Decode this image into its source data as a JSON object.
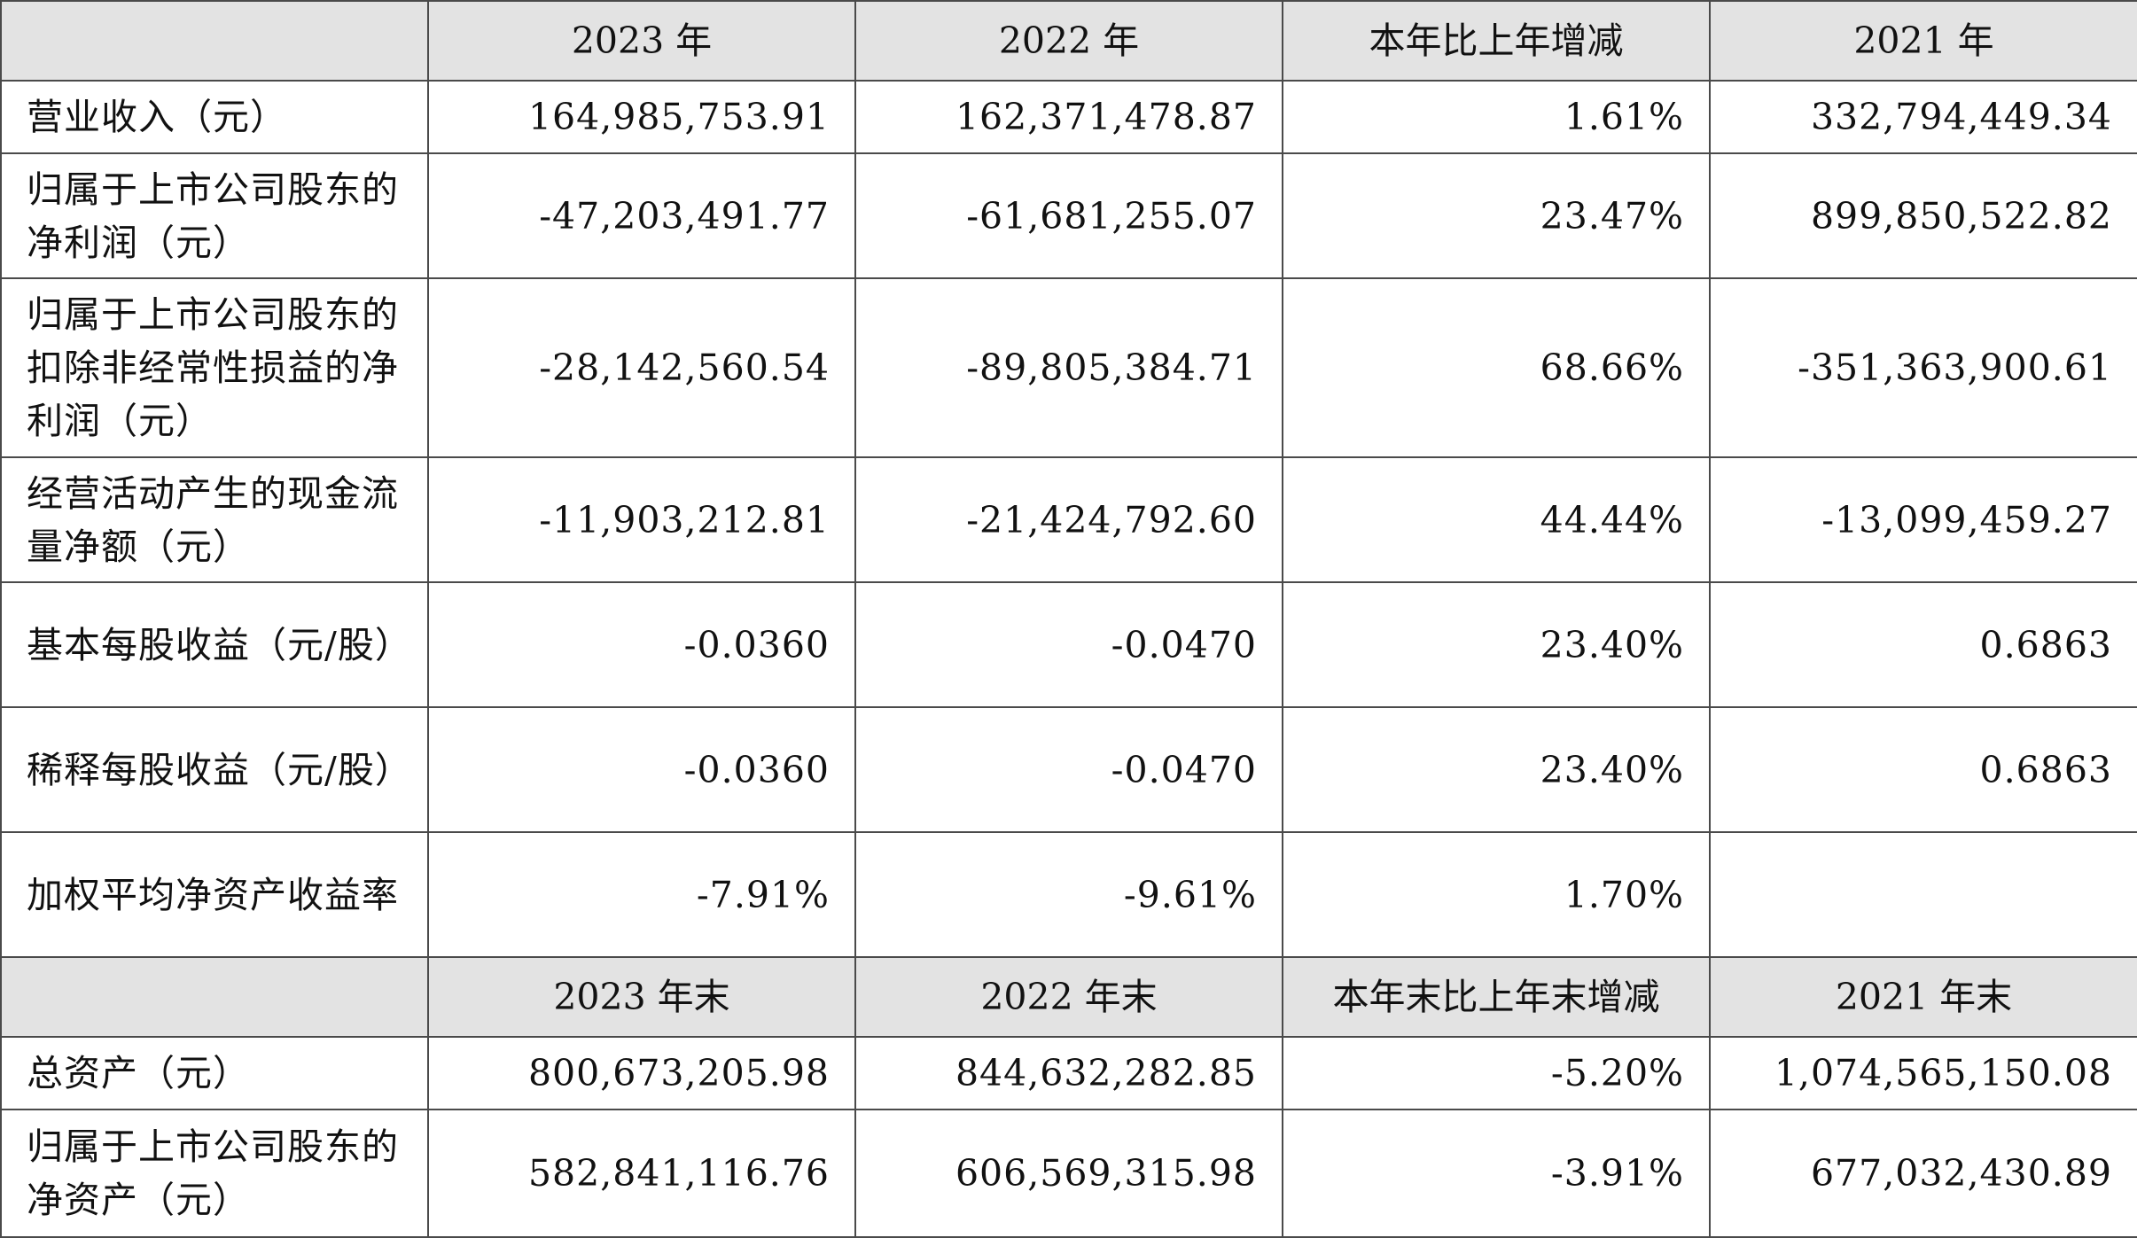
{
  "header_top": {
    "col1": "2023 年",
    "col2": "2022 年",
    "col3": "本年比上年增减",
    "col4": "2021 年"
  },
  "rows_top": [
    {
      "label": "营业收入（元）",
      "v2023": "164,985,753.91",
      "v2022": "162,371,478.87",
      "change": "1.61%",
      "v2021": "332,794,449.34"
    },
    {
      "label": "归属于上市公司股东的净利润（元）",
      "v2023": "-47,203,491.77",
      "v2022": "-61,681,255.07",
      "change": "23.47%",
      "v2021": "899,850,522.82"
    },
    {
      "label": "归属于上市公司股东的扣除非经常性损益的净利润（元）",
      "v2023": "-28,142,560.54",
      "v2022": "-89,805,384.71",
      "change": "68.66%",
      "v2021": "-351,363,900.61"
    },
    {
      "label": "经营活动产生的现金流量净额（元）",
      "v2023": "-11,903,212.81",
      "v2022": "-21,424,792.60",
      "change": "44.44%",
      "v2021": "-13,099,459.27"
    },
    {
      "label": "基本每股收益（元/股）",
      "v2023": "-0.0360",
      "v2022": "-0.0470",
      "change": "23.40%",
      "v2021": "0.6863"
    },
    {
      "label": "稀释每股收益（元/股）",
      "v2023": "-0.0360",
      "v2022": "-0.0470",
      "change": "23.40%",
      "v2021": "0.6863"
    },
    {
      "label": "加权平均净资产收益率",
      "v2023": "-7.91%",
      "v2022": "-9.61%",
      "change": "1.70%",
      "v2021": ""
    }
  ],
  "header_bottom": {
    "col1": "2023 年末",
    "col2": "2022 年末",
    "col3": "本年末比上年末增减",
    "col4": "2021 年末"
  },
  "rows_bottom": [
    {
      "label": "总资产（元）",
      "v2023": "800,673,205.98",
      "v2022": "844,632,282.85",
      "change": "-5.20%",
      "v2021": "1,074,565,150.08"
    },
    {
      "label": "归属于上市公司股东的净资产（元）",
      "v2023": "582,841,116.76",
      "v2022": "606,569,315.98",
      "change": "-3.91%",
      "v2021": "677,032,430.89"
    }
  ]
}
